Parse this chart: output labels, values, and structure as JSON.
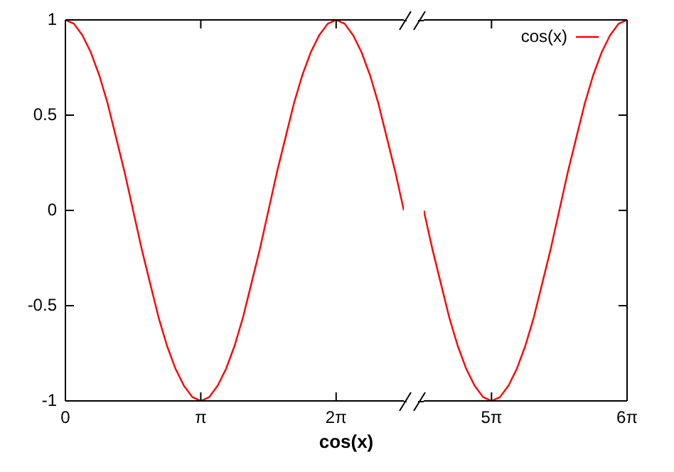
{
  "chart_data": [
    {
      "type": "line",
      "xlabel": "cos(x)",
      "legend": false,
      "marker": "none",
      "grid": false,
      "xlim": [
        0,
        7.854
      ],
      "xticks": [
        0,
        {
          "value": 3.142,
          "label": "π"
        },
        {
          "value": 6.283,
          "label": "2π"
        }
      ],
      "ylim": [
        -1,
        1
      ],
      "yticks": [
        -1,
        -0.5,
        0,
        0.5,
        1
      ],
      "series": [
        {
          "color": "#ff0000",
          "x": [
            0,
            0.196,
            0.393,
            0.589,
            0.785,
            0.982,
            1.178,
            1.374,
            1.571,
            1.767,
            1.963,
            2.16,
            2.356,
            2.553,
            2.749,
            2.945,
            3.142,
            3.338,
            3.534,
            3.731,
            3.927,
            4.123,
            4.32,
            4.516,
            4.712,
            4.909,
            5.105,
            5.301,
            5.498,
            5.694,
            5.89,
            6.087,
            6.283,
            6.48,
            6.676,
            6.872,
            7.069,
            7.265,
            7.461,
            7.658,
            7.854
          ],
          "values": [
            1,
            0.98,
            0.92,
            0.83,
            0.71,
            0.56,
            0.38,
            0.2,
            0,
            -0.2,
            -0.38,
            -0.56,
            -0.71,
            -0.83,
            -0.92,
            -0.98,
            -1,
            -0.98,
            -0.92,
            -0.83,
            -0.71,
            -0.56,
            -0.38,
            -0.2,
            0,
            0.2,
            0.38,
            0.56,
            0.71,
            0.83,
            0.92,
            0.98,
            1,
            0.98,
            0.92,
            0.83,
            0.71,
            0.56,
            0.38,
            0.2,
            0
          ]
        }
      ]
    },
    {
      "type": "line",
      "legend": "top right",
      "marker": "none",
      "grid": false,
      "tick_labels": "x",
      "xlim": [
        14.137,
        18.85
      ],
      "xticks": [
        {
          "value": 15.708,
          "label": "5π"
        },
        {
          "value": 18.85,
          "label": "6π"
        }
      ],
      "ylim": [
        -1,
        1
      ],
      "yticks": [
        -1,
        -0.5,
        0,
        0.5,
        1
      ],
      "series": [
        {
          "name": "cos(x)",
          "color": "#ff0000",
          "x": [
            14.137,
            14.334,
            14.53,
            14.726,
            14.923,
            15.119,
            15.315,
            15.512,
            15.708,
            15.904,
            16.101,
            16.297,
            16.493,
            16.69,
            16.886,
            17.082,
            17.279,
            17.475,
            17.671,
            17.868,
            18.064,
            18.261,
            18.457,
            18.653,
            18.85
          ],
          "values": [
            0,
            -0.2,
            -0.38,
            -0.56,
            -0.71,
            -0.83,
            -0.92,
            -0.98,
            -1,
            -0.98,
            -0.92,
            -0.83,
            -0.71,
            -0.56,
            -0.38,
            -0.2,
            0,
            0.2,
            0.38,
            0.56,
            0.71,
            0.83,
            0.92,
            0.98,
            1
          ]
        }
      ]
    }
  ]
}
